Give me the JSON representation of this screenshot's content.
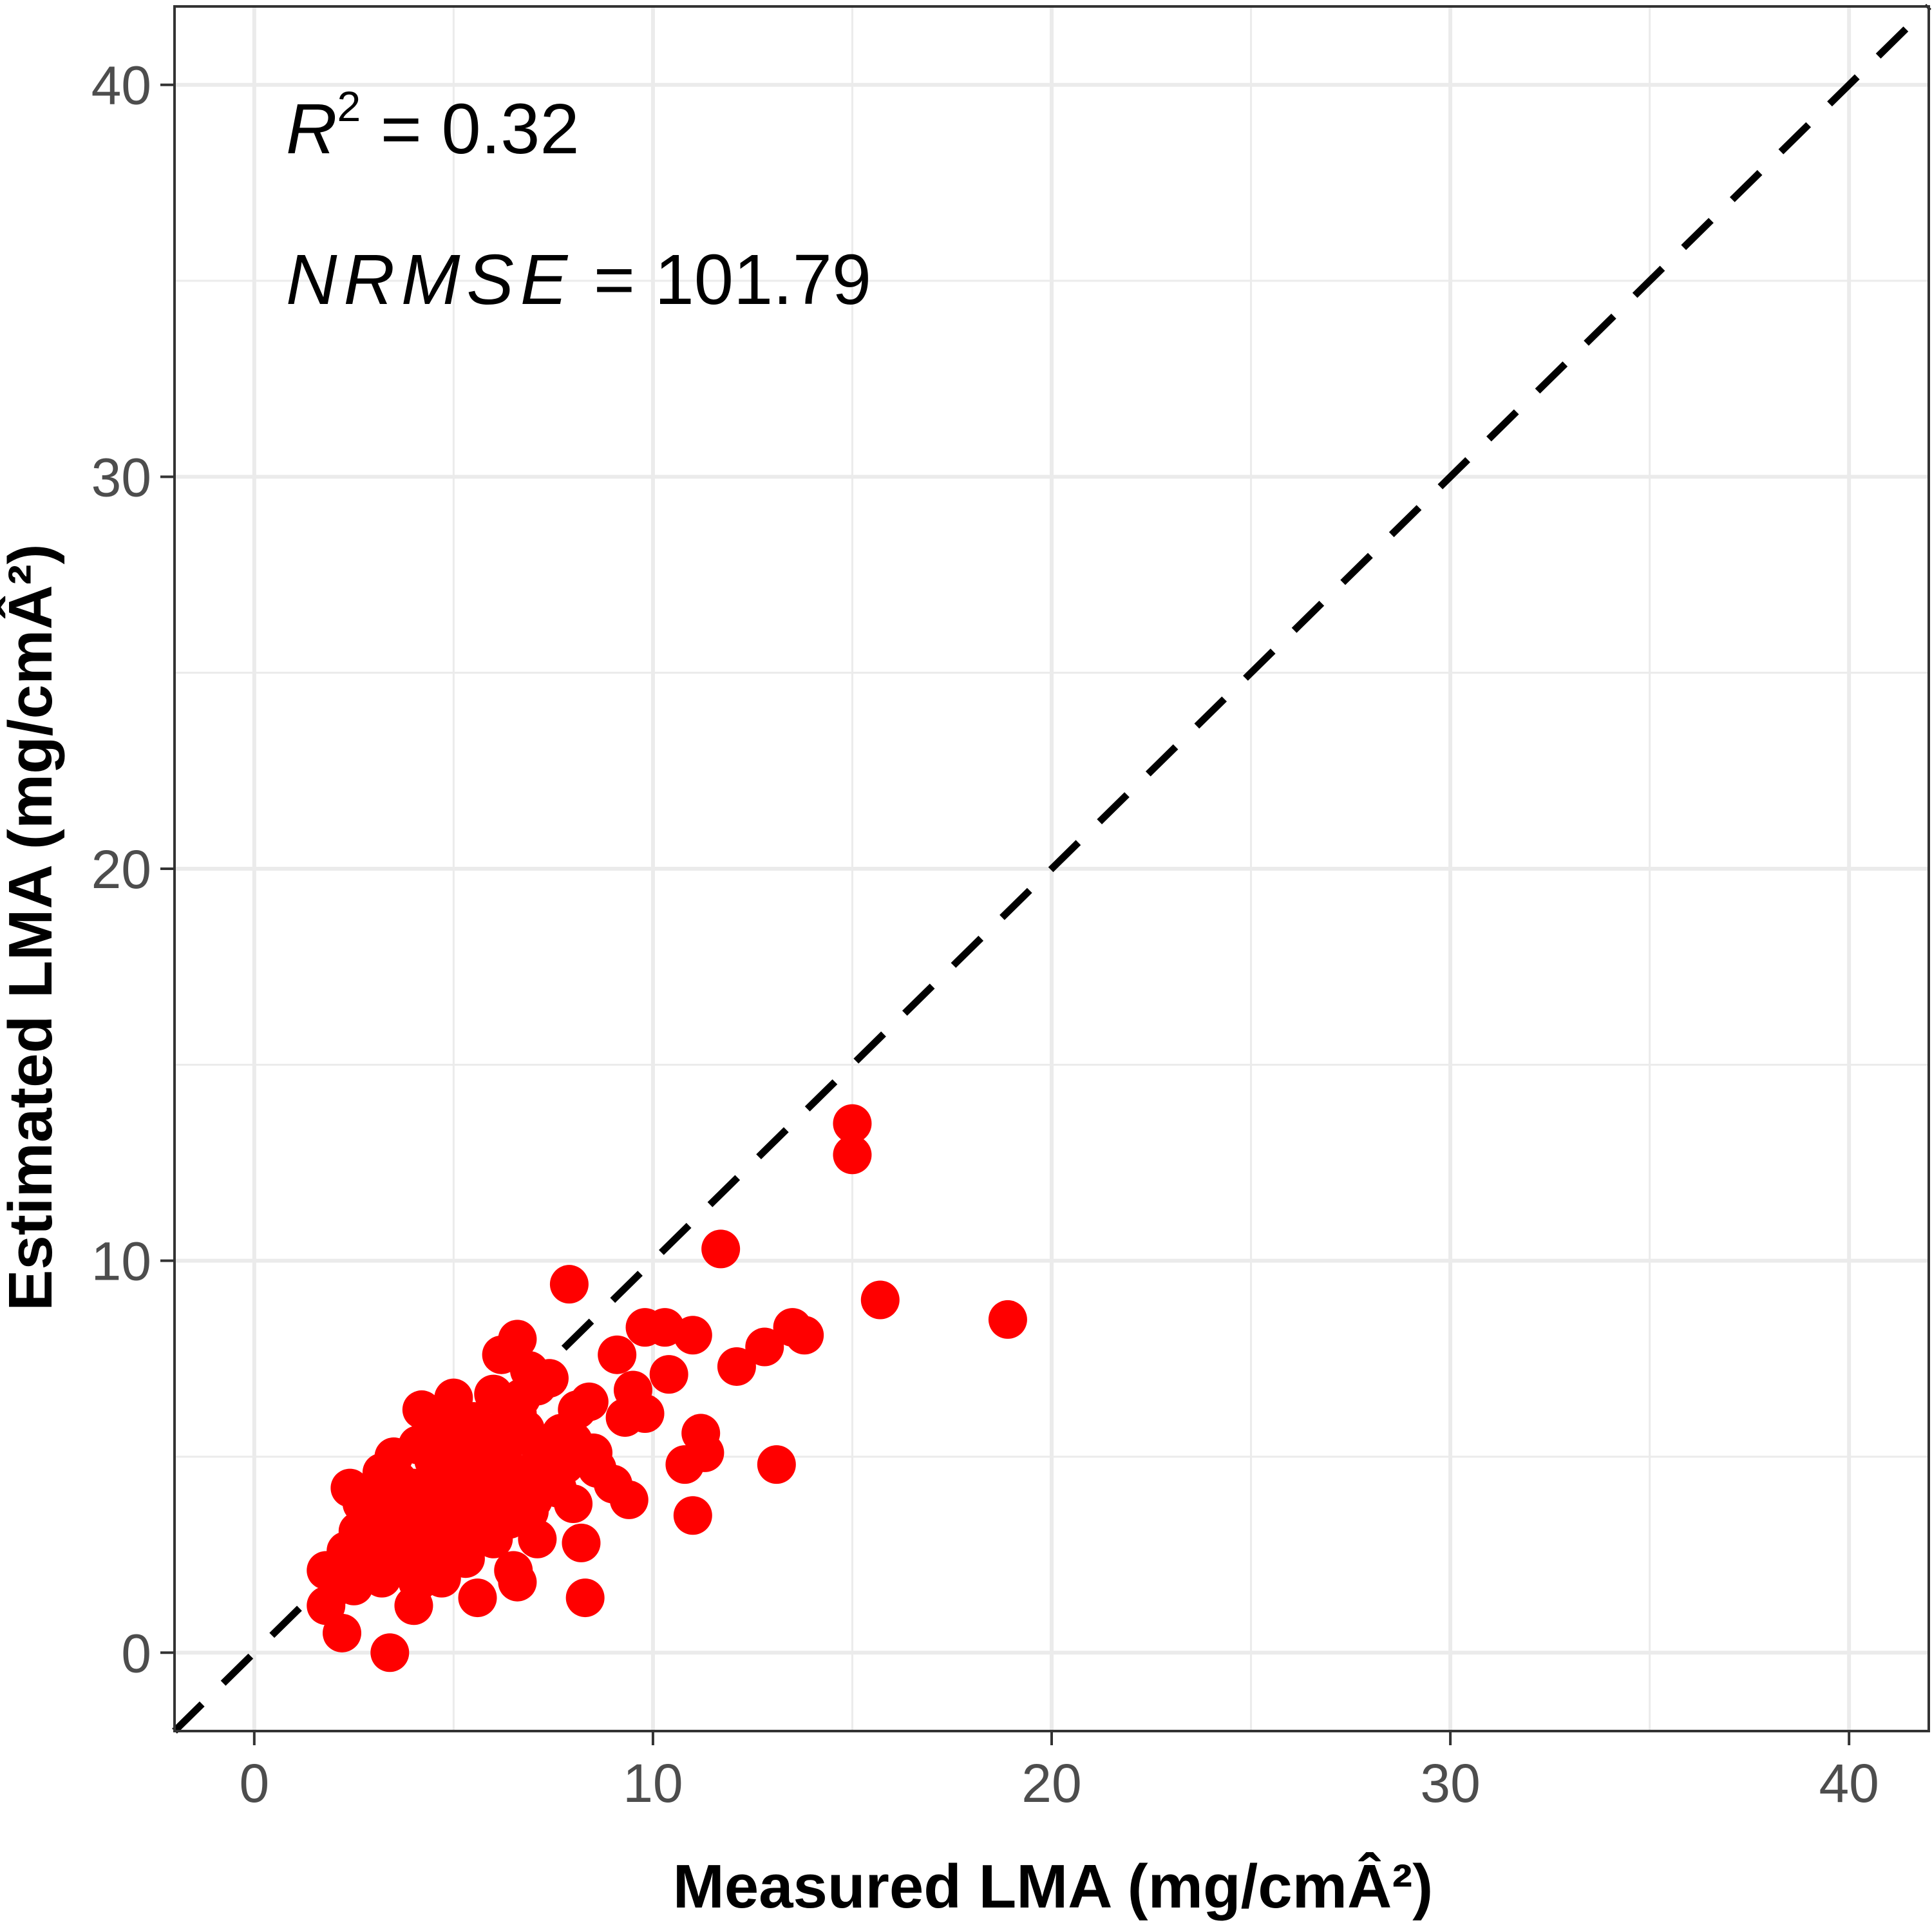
{
  "chart_data": {
    "type": "scatter",
    "title": "",
    "xlabel": "Measured LMA (mg/cmÂ²)",
    "ylabel": "Estimated LMA (mg/cmÂ²)",
    "xlim": [
      -2,
      42
    ],
    "ylim": [
      -2,
      42
    ],
    "x_ticks": [
      0,
      10,
      20,
      30,
      40
    ],
    "y_ticks": [
      0,
      10,
      20,
      30,
      40
    ],
    "x_tick_labels": [
      "0",
      "10",
      "20",
      "30",
      "40"
    ],
    "y_tick_labels": [
      "0",
      "10",
      "20",
      "30",
      "40"
    ],
    "grid": true,
    "reference_line": {
      "slope": 1,
      "intercept": 0,
      "style": "dashed",
      "color": "#000000"
    },
    "point_color": "#ff0000",
    "annotations": {
      "r2_symbol": "R",
      "r2_exponent": "2",
      "r2_value": " = 0.32",
      "nrmse_symbol": "NRMSE",
      "nrmse_value": " = 101.79"
    },
    "series": [
      {
        "points": [
          [
            15.0,
            13.5
          ],
          [
            15.0,
            12.7
          ],
          [
            11.7,
            10.3
          ],
          [
            7.9,
            9.4
          ],
          [
            15.7,
            9.0
          ],
          [
            18.9,
            8.5
          ],
          [
            13.5,
            8.3
          ],
          [
            13.8,
            8.1
          ],
          [
            10.3,
            8.3
          ],
          [
            9.8,
            8.3
          ],
          [
            11.0,
            8.1
          ],
          [
            12.8,
            7.8
          ],
          [
            12.1,
            7.3
          ],
          [
            10.4,
            7.1
          ],
          [
            6.6,
            8.0
          ],
          [
            6.2,
            7.6
          ],
          [
            9.1,
            7.6
          ],
          [
            9.5,
            6.7
          ],
          [
            9.3,
            6.0
          ],
          [
            9.8,
            6.1
          ],
          [
            8.4,
            6.4
          ],
          [
            11.2,
            5.6
          ],
          [
            11.3,
            5.1
          ],
          [
            10.8,
            4.8
          ],
          [
            13.1,
            4.8
          ],
          [
            11.0,
            3.5
          ],
          [
            9.0,
            4.3
          ],
          [
            9.4,
            3.9
          ],
          [
            8.0,
            3.8
          ],
          [
            8.2,
            2.8
          ],
          [
            8.3,
            1.4
          ],
          [
            6.6,
            1.8
          ],
          [
            6.5,
            2.1
          ],
          [
            7.1,
            2.9
          ],
          [
            5.6,
            1.4
          ],
          [
            4.0,
            1.2
          ],
          [
            3.4,
            0.0
          ],
          [
            2.2,
            0.5
          ],
          [
            1.8,
            1.2
          ],
          [
            2.5,
            1.7
          ],
          [
            3.2,
            1.9
          ],
          [
            1.8,
            2.1
          ],
          [
            2.3,
            2.6
          ],
          [
            2.6,
            3.1
          ],
          [
            2.7,
            3.8
          ],
          [
            2.4,
            4.2
          ],
          [
            3.2,
            4.6
          ],
          [
            3.5,
            5.0
          ],
          [
            4.1,
            5.3
          ],
          [
            4.2,
            6.2
          ],
          [
            5.0,
            6.5
          ],
          [
            4.9,
            5.8
          ],
          [
            5.5,
            5.9
          ],
          [
            6.0,
            6.6
          ],
          [
            6.7,
            6.5
          ],
          [
            6.9,
            7.2
          ],
          [
            7.4,
            7.0
          ],
          [
            7.7,
            5.6
          ],
          [
            8.1,
            6.2
          ],
          [
            8.5,
            5.1
          ],
          [
            7.8,
            4.8
          ],
          [
            7.3,
            4.4
          ],
          [
            7.0,
            3.9
          ],
          [
            6.4,
            3.4
          ],
          [
            5.8,
            3.2
          ],
          [
            5.2,
            2.7
          ],
          [
            4.6,
            2.2
          ],
          [
            3.9,
            2.5
          ],
          [
            3.6,
            3.1
          ],
          [
            4.3,
            3.5
          ],
          [
            4.8,
            4.0
          ],
          [
            5.3,
            4.4
          ],
          [
            5.9,
            4.9
          ],
          [
            6.3,
            5.3
          ],
          [
            6.8,
            5.7
          ],
          [
            6.1,
            4.1
          ],
          [
            5.6,
            3.7
          ],
          [
            4.9,
            3.2
          ],
          [
            4.4,
            2.9
          ],
          [
            3.8,
            3.9
          ],
          [
            4.6,
            4.6
          ],
          [
            5.1,
            5.1
          ],
          [
            5.7,
            5.4
          ],
          [
            6.5,
            4.6
          ],
          [
            7.2,
            5.0
          ],
          [
            7.6,
            4.2
          ],
          [
            6.9,
            3.6
          ],
          [
            6.0,
            2.9
          ],
          [
            5.3,
            2.4
          ],
          [
            4.7,
            1.9
          ],
          [
            4.1,
            1.8
          ],
          [
            3.3,
            2.3
          ],
          [
            2.9,
            2.8
          ],
          [
            3.1,
            3.4
          ],
          [
            3.4,
            3.9
          ],
          [
            4.0,
            4.2
          ],
          [
            4.5,
            4.9
          ],
          [
            5.4,
            4.8
          ],
          [
            6.2,
            5.7
          ],
          [
            5.8,
            4.3
          ],
          [
            5.0,
            3.6
          ],
          [
            4.3,
            3.0
          ],
          [
            3.7,
            2.7
          ],
          [
            3.0,
            2.4
          ],
          [
            2.5,
            2.2
          ],
          [
            2.1,
            1.7
          ],
          [
            2.8,
            3.5
          ],
          [
            3.6,
            4.4
          ],
          [
            4.4,
            5.5
          ],
          [
            5.2,
            5.9
          ],
          [
            6.6,
            6.1
          ],
          [
            7.1,
            6.8
          ],
          [
            8.0,
            5.4
          ],
          [
            8.6,
            4.7
          ]
        ]
      }
    ]
  }
}
